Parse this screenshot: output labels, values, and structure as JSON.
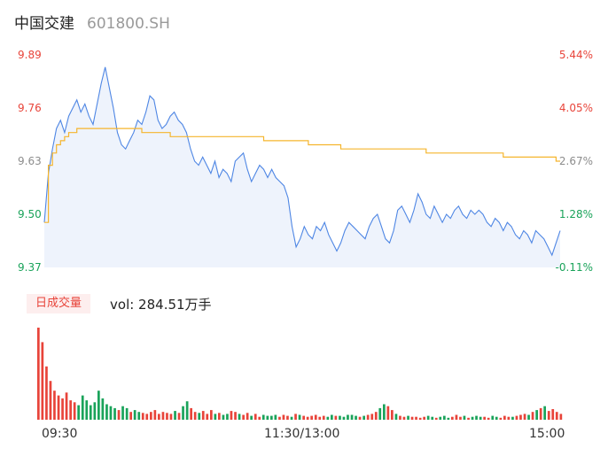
{
  "header": {
    "name": "中国交建",
    "code": "601800.SH"
  },
  "volume_badge": "日成交量",
  "volume_text": "vol: 284.51万手",
  "colors": {
    "price_line": "#4e86e4",
    "area_fill": "#eef3fc",
    "avg_line": "#f5b52d",
    "up": "#e8443a",
    "down": "#1aa35a",
    "neutral": "#8c8c8c"
  },
  "chart_data": {
    "type": "line",
    "title": "",
    "y_left_ticks": [
      "9.89",
      "9.76",
      "9.63",
      "9.50",
      "9.37"
    ],
    "y_right_ticks": [
      "5.44%",
      "4.05%",
      "2.67%",
      "1.28%",
      "-0.11%"
    ],
    "x_ticks": [
      "09:30",
      "11:30/13:00",
      "15:00"
    ],
    "ylim": [
      9.37,
      9.89
    ],
    "price": [
      9.48,
      9.6,
      9.66,
      9.71,
      9.73,
      9.7,
      9.74,
      9.76,
      9.78,
      9.75,
      9.77,
      9.74,
      9.72,
      9.77,
      9.82,
      9.86,
      9.81,
      9.76,
      9.7,
      9.67,
      9.66,
      9.68,
      9.7,
      9.73,
      9.72,
      9.75,
      9.79,
      9.78,
      9.73,
      9.71,
      9.72,
      9.74,
      9.75,
      9.73,
      9.72,
      9.7,
      9.66,
      9.63,
      9.62,
      9.64,
      9.62,
      9.6,
      9.63,
      9.59,
      9.61,
      9.6,
      9.58,
      9.63,
      9.64,
      9.65,
      9.61,
      9.58,
      9.6,
      9.62,
      9.61,
      9.59,
      9.61,
      9.59,
      9.58,
      9.57,
      9.54,
      9.47,
      9.42,
      9.44,
      9.47,
      9.45,
      9.44,
      9.47,
      9.46,
      9.48,
      9.45,
      9.43,
      9.41,
      9.43,
      9.46,
      9.48,
      9.47,
      9.46,
      9.45,
      9.44,
      9.47,
      9.49,
      9.5,
      9.47,
      9.44,
      9.43,
      9.46,
      9.51,
      9.52,
      9.5,
      9.48,
      9.51,
      9.55,
      9.53,
      9.5,
      9.49,
      9.52,
      9.5,
      9.48,
      9.5,
      9.49,
      9.51,
      9.52,
      9.5,
      9.49,
      9.51,
      9.5,
      9.51,
      9.5,
      9.48,
      9.47,
      9.49,
      9.48,
      9.46,
      9.48,
      9.47,
      9.45,
      9.44,
      9.46,
      9.45,
      9.43,
      9.46,
      9.45,
      9.44,
      9.42,
      9.4,
      9.43,
      9.46
    ],
    "average": [
      9.48,
      9.62,
      9.65,
      9.67,
      9.68,
      9.69,
      9.7,
      9.7,
      9.71,
      9.71,
      9.71,
      9.71,
      9.71,
      9.71,
      9.71,
      9.71,
      9.71,
      9.71,
      9.71,
      9.71,
      9.71,
      9.71,
      9.71,
      9.71,
      9.7,
      9.7,
      9.7,
      9.7,
      9.7,
      9.7,
      9.7,
      9.69,
      9.69,
      9.69,
      9.69,
      9.69,
      9.69,
      9.69,
      9.69,
      9.69,
      9.69,
      9.69,
      9.69,
      9.69,
      9.69,
      9.69,
      9.69,
      9.69,
      9.69,
      9.69,
      9.69,
      9.69,
      9.69,
      9.69,
      9.68,
      9.68,
      9.68,
      9.68,
      9.68,
      9.68,
      9.68,
      9.68,
      9.68,
      9.68,
      9.68,
      9.67,
      9.67,
      9.67,
      9.67,
      9.67,
      9.67,
      9.67,
      9.67,
      9.66,
      9.66,
      9.66,
      9.66,
      9.66,
      9.66,
      9.66,
      9.66,
      9.66,
      9.66,
      9.66,
      9.66,
      9.66,
      9.66,
      9.66,
      9.66,
      9.66,
      9.66,
      9.66,
      9.66,
      9.66,
      9.65,
      9.65,
      9.65,
      9.65,
      9.65,
      9.65,
      9.65,
      9.65,
      9.65,
      9.65,
      9.65,
      9.65,
      9.65,
      9.65,
      9.65,
      9.65,
      9.65,
      9.65,
      9.65,
      9.64,
      9.64,
      9.64,
      9.64,
      9.64,
      9.64,
      9.64,
      9.64,
      9.64,
      9.64,
      9.64,
      9.64,
      9.64,
      9.63,
      9.63
    ],
    "volume": [
      95,
      80,
      55,
      40,
      30,
      25,
      22,
      28,
      20,
      18,
      15,
      25,
      20,
      15,
      18,
      30,
      22,
      16,
      14,
      12,
      10,
      14,
      12,
      8,
      10,
      8,
      7,
      6,
      8,
      10,
      6,
      8,
      7,
      6,
      9,
      7,
      14,
      19,
      12,
      8,
      7,
      9,
      6,
      10,
      6,
      7,
      5,
      6,
      9,
      8,
      6,
      5,
      7,
      4,
      6,
      3,
      5,
      4,
      4,
      5,
      3,
      5,
      4,
      3,
      6,
      5,
      4,
      3,
      4,
      5,
      3,
      4,
      3,
      5,
      4,
      4,
      3,
      5,
      5,
      4,
      3,
      4,
      5,
      6,
      8,
      12,
      16,
      14,
      10,
      6,
      4,
      3,
      4,
      3,
      3,
      2,
      3,
      4,
      3,
      2,
      3,
      4,
      2,
      3,
      5,
      3,
      4,
      2,
      3,
      4,
      3,
      3,
      2,
      4,
      3,
      2,
      4,
      3,
      3,
      4,
      5,
      6,
      5,
      8,
      10,
      12,
      14,
      9,
      11,
      8,
      6
    ],
    "volume_up": [
      true,
      true,
      true,
      true,
      true,
      true,
      true,
      true,
      true,
      true,
      false,
      false,
      false,
      false,
      false,
      false,
      false,
      false,
      false,
      false,
      true,
      false,
      false,
      true,
      false,
      false,
      true,
      true,
      true,
      true,
      true,
      true,
      true,
      true,
      false,
      true,
      false,
      false,
      true,
      true,
      false,
      true,
      true,
      true,
      false,
      true,
      false,
      false,
      true,
      true,
      false,
      true,
      true,
      false,
      true,
      true,
      false,
      false,
      false,
      false,
      true,
      true,
      true,
      false,
      true,
      false,
      true,
      true,
      true,
      true,
      true,
      true,
      false,
      false,
      true,
      false,
      false,
      false,
      false,
      false,
      true,
      false,
      true,
      true,
      true,
      false,
      false,
      true,
      true,
      false,
      true,
      true,
      false,
      true,
      true,
      true,
      true,
      false,
      false,
      true,
      false,
      false,
      false,
      true,
      true,
      true,
      false,
      true,
      false,
      false,
      false,
      true,
      true,
      false,
      false,
      true,
      true,
      true,
      false,
      true,
      true,
      true,
      false,
      true,
      false,
      true,
      false,
      true,
      true,
      true,
      true
    ]
  }
}
